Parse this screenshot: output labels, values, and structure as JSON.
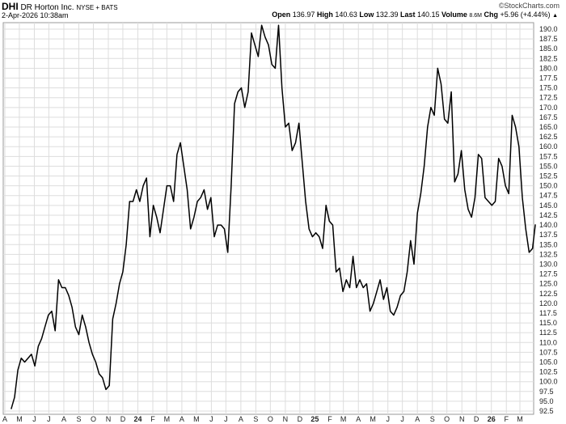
{
  "header": {
    "symbol": "DHI",
    "company": "DR Horton Inc.",
    "exchange": "NYSE + BATS",
    "datetime": "2-Apr-2026 10:38am",
    "watermark": "©StockCharts.com",
    "open_label": "Open",
    "open": "136.97",
    "high_label": "High",
    "high": "140.63",
    "low_label": "Low",
    "low": "132.39",
    "last_label": "Last",
    "last": "140.15",
    "volume_label": "Volume",
    "volume": "8.6M",
    "chg_label": "Chg",
    "chg": "+5.96 (+4.44%)",
    "chg_icon": "up-triangle-icon"
  },
  "chart_data": {
    "type": "line",
    "title": "",
    "xlabel": "",
    "ylabel": "",
    "ylim": [
      92.5,
      190
    ],
    "y_ticks": [
      "92.5",
      "95.0",
      "97.5",
      "100.0",
      "102.5",
      "105.0",
      "107.5",
      "110.0",
      "112.5",
      "115.0",
      "117.5",
      "120.0",
      "122.5",
      "125.0",
      "127.5",
      "130.0",
      "132.5",
      "135.0",
      "137.5",
      "140.0",
      "142.5",
      "145.0",
      "147.5",
      "150.0",
      "152.5",
      "155.0",
      "157.5",
      "160.0",
      "162.5",
      "165.0",
      "167.5",
      "170.0",
      "172.5",
      "175.0",
      "177.5",
      "180.0",
      "182.5",
      "185.0",
      "187.5",
      "190.0"
    ],
    "x_ticks": [
      {
        "label": "A",
        "date": "2023-04-01"
      },
      {
        "label": "M",
        "date": "2023-05-01"
      },
      {
        "label": "J",
        "date": "2023-06-01"
      },
      {
        "label": "J",
        "date": "2023-07-01"
      },
      {
        "label": "A",
        "date": "2023-08-01"
      },
      {
        "label": "S",
        "date": "2023-09-01"
      },
      {
        "label": "O",
        "date": "2023-10-01"
      },
      {
        "label": "N",
        "date": "2023-11-01"
      },
      {
        "label": "D",
        "date": "2023-12-01"
      },
      {
        "label": "24",
        "date": "2024-01-01",
        "bold": true
      },
      {
        "label": "F",
        "date": "2024-02-01"
      },
      {
        "label": "M",
        "date": "2024-03-01"
      },
      {
        "label": "A",
        "date": "2024-04-01"
      },
      {
        "label": "M",
        "date": "2024-05-01"
      },
      {
        "label": "J",
        "date": "2024-06-01"
      },
      {
        "label": "J",
        "date": "2024-07-01"
      },
      {
        "label": "A",
        "date": "2024-08-01"
      },
      {
        "label": "S",
        "date": "2024-09-01"
      },
      {
        "label": "O",
        "date": "2024-10-01"
      },
      {
        "label": "N",
        "date": "2024-11-01"
      },
      {
        "label": "D",
        "date": "2024-12-01"
      },
      {
        "label": "25",
        "date": "2025-01-01",
        "bold": true
      },
      {
        "label": "F",
        "date": "2025-02-01"
      },
      {
        "label": "M",
        "date": "2025-03-01"
      },
      {
        "label": "A",
        "date": "2025-04-01"
      },
      {
        "label": "M",
        "date": "2025-05-01"
      },
      {
        "label": "J",
        "date": "2025-06-01"
      },
      {
        "label": "J",
        "date": "2025-07-01"
      },
      {
        "label": "A",
        "date": "2025-08-01"
      },
      {
        "label": "S",
        "date": "2025-09-01"
      },
      {
        "label": "O",
        "date": "2025-10-01"
      },
      {
        "label": "N",
        "date": "2025-11-01"
      },
      {
        "label": "D",
        "date": "2025-12-01"
      },
      {
        "label": "26",
        "date": "2026-01-01",
        "bold": true
      },
      {
        "label": "F",
        "date": "2026-02-01"
      },
      {
        "label": "M",
        "date": "2026-03-01"
      }
    ],
    "grid": true,
    "line_color": "#000000",
    "dates": [
      "2023-04-14",
      "2023-04-21",
      "2023-04-28",
      "2023-05-05",
      "2023-05-12",
      "2023-05-19",
      "2023-05-26",
      "2023-06-02",
      "2023-06-09",
      "2023-06-16",
      "2023-06-23",
      "2023-06-30",
      "2023-07-07",
      "2023-07-14",
      "2023-07-21",
      "2023-07-28",
      "2023-08-04",
      "2023-08-11",
      "2023-08-18",
      "2023-08-25",
      "2023-09-01",
      "2023-09-08",
      "2023-09-15",
      "2023-09-22",
      "2023-09-29",
      "2023-10-06",
      "2023-10-13",
      "2023-10-20",
      "2023-10-27",
      "2023-11-03",
      "2023-11-10",
      "2023-11-17",
      "2023-11-24",
      "2023-12-01",
      "2023-12-08",
      "2023-12-15",
      "2023-12-22",
      "2023-12-29",
      "2024-01-05",
      "2024-01-12",
      "2024-01-19",
      "2024-01-26",
      "2024-02-02",
      "2024-02-09",
      "2024-02-16",
      "2024-02-23",
      "2024-03-01",
      "2024-03-08",
      "2024-03-15",
      "2024-03-22",
      "2024-03-29",
      "2024-04-05",
      "2024-04-12",
      "2024-04-19",
      "2024-04-26",
      "2024-05-03",
      "2024-05-10",
      "2024-05-17",
      "2024-05-24",
      "2024-05-31",
      "2024-06-07",
      "2024-06-14",
      "2024-06-21",
      "2024-06-28",
      "2024-07-05",
      "2024-07-12",
      "2024-07-19",
      "2024-07-26",
      "2024-08-02",
      "2024-08-09",
      "2024-08-16",
      "2024-08-23",
      "2024-08-30",
      "2024-09-06",
      "2024-09-13",
      "2024-09-20",
      "2024-09-27",
      "2024-10-04",
      "2024-10-11",
      "2024-10-18",
      "2024-10-25",
      "2024-11-01",
      "2024-11-08",
      "2024-11-15",
      "2024-11-22",
      "2024-11-29",
      "2024-12-06",
      "2024-12-13",
      "2024-12-20",
      "2024-12-27",
      "2025-01-03",
      "2025-01-10",
      "2025-01-17",
      "2025-01-24",
      "2025-01-31",
      "2025-02-07",
      "2025-02-14",
      "2025-02-21",
      "2025-02-28",
      "2025-03-07",
      "2025-03-14",
      "2025-03-21",
      "2025-03-28",
      "2025-04-04",
      "2025-04-11",
      "2025-04-18",
      "2025-04-25",
      "2025-05-02",
      "2025-05-09",
      "2025-05-16",
      "2025-05-23",
      "2025-05-30",
      "2025-06-06",
      "2025-06-13",
      "2025-06-20",
      "2025-06-27",
      "2025-07-04",
      "2025-07-11",
      "2025-07-18",
      "2025-07-25",
      "2025-08-01",
      "2025-08-08",
      "2025-08-15",
      "2025-08-22",
      "2025-08-29",
      "2025-09-05",
      "2025-09-12",
      "2025-09-19",
      "2025-09-26",
      "2025-10-03",
      "2025-10-10",
      "2025-10-17",
      "2025-10-24",
      "2025-10-31",
      "2025-11-07",
      "2025-11-14",
      "2025-11-21",
      "2025-11-28",
      "2025-12-05",
      "2025-12-12",
      "2025-12-19",
      "2025-12-26",
      "2026-01-02",
      "2026-01-09",
      "2026-01-16",
      "2026-01-23",
      "2026-01-30",
      "2026-02-06",
      "2026-02-13",
      "2026-02-20",
      "2026-02-27",
      "2026-03-06",
      "2026-03-13",
      "2026-03-20",
      "2026-03-27",
      "2026-04-02"
    ],
    "values": [
      93,
      96,
      103,
      106,
      105,
      106,
      107,
      104,
      109,
      111,
      114,
      117,
      118,
      113,
      126,
      124,
      124,
      122,
      119,
      114,
      112,
      117,
      114,
      110,
      107,
      105,
      102,
      101,
      98,
      99,
      116,
      120,
      125,
      128,
      135,
      146,
      146,
      149,
      146,
      150,
      152,
      137,
      145,
      142,
      138,
      144,
      150,
      150,
      146,
      158,
      161,
      155,
      149,
      139,
      142,
      146,
      147,
      149,
      144,
      147,
      137,
      140,
      140,
      139,
      133,
      150,
      171,
      174,
      175,
      170,
      174,
      189,
      186,
      183,
      191,
      188,
      186,
      181,
      180,
      191,
      175,
      165,
      166,
      159,
      161,
      166,
      156,
      146,
      139,
      137,
      138,
      137,
      134,
      145,
      141,
      140,
      128,
      129,
      123,
      126,
      124,
      132,
      124,
      126,
      124,
      125,
      118,
      120,
      123,
      126,
      121,
      124,
      118,
      117,
      119,
      122,
      123,
      128,
      136,
      130,
      143,
      148,
      155,
      165,
      170,
      168,
      180,
      176,
      167,
      166,
      174,
      151,
      153,
      159,
      149,
      144,
      142,
      147,
      158,
      157,
      147,
      146,
      145,
      146,
      157,
      155,
      150,
      148,
      168,
      165,
      160,
      147,
      139,
      133,
      134,
      140.15
    ]
  }
}
